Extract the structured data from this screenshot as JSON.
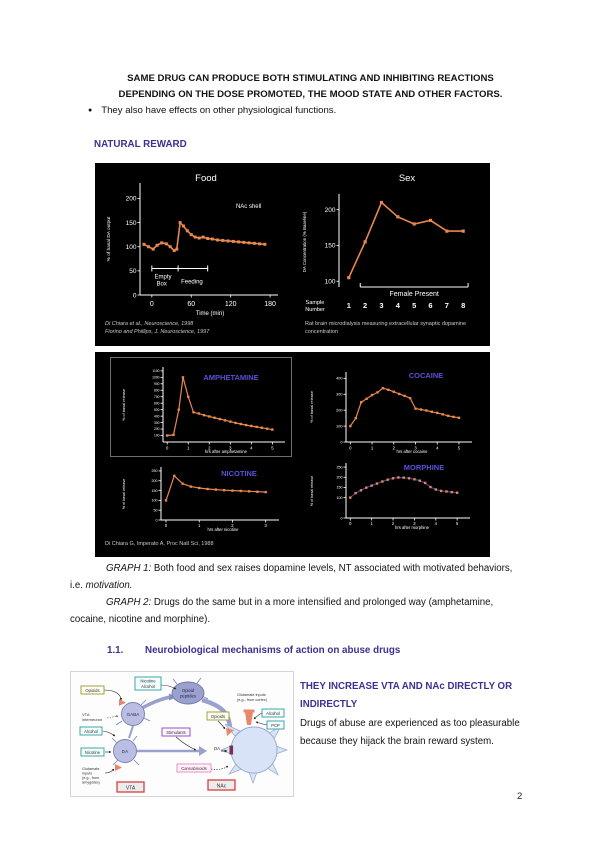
{
  "page": {
    "header_line1": "SAME DRUG CAN PRODUCE BOTH STIMULATING AND INHIBITING REACTIONS",
    "header_line2": "DEPENDING ON THE DOSE PROMOTED, THE MOOD STATE AND OTHER FACTORS.",
    "bullet_marker": "●",
    "bullet_text": "They also have effects on other physiological functions.",
    "natural_reward_heading": "NATURAL REWARD",
    "graph1_label": "GRAPH 1:",
    "graph1_text": " Both food and sex raises dopamine levels, NT associated with motivated behaviors, i.e. ",
    "graph1_emphasis": "motivation.",
    "graph2_label": "GRAPH 2:",
    "graph2_text": " Drugs do the same but in a more intensified and prolonged way (amphetamine, cocaine, nicotine and morphine).",
    "section_number": "1.1.",
    "section_title": "Neurobiological mechanisms of action on abuse drugs",
    "vta_heading": "THEY INCREASE VTA AND NAc DIRECTLY OR INDIRECTLY",
    "vta_body": "Drugs of abuse are experienced as too pleasurable because they hijack the brain reward system.",
    "page_number": "2"
  },
  "colors": {
    "doc_purple": "#3b3191",
    "chart_title_purple": "#5b4fd8",
    "series_orange": "#e8874e",
    "morphine_line": "#4a3f9e"
  },
  "figure1": {
    "citation_line1": "Di Chiara et al., Neuroscience, 1998",
    "citation_line2": "Fiorino and Phillips, J. Neuroscience, 1997",
    "caption": "Rat brain microdialysis measuring extracellular synaptic dopamine concentration"
  },
  "figure2": {
    "citation": "Di Chiara G, Imperato A, Proc Natl Sci, 1988"
  },
  "diagram": {
    "opioids1": "Opioids",
    "nicotine_top": "Nicotine",
    "alcohol_top": "Alcohol",
    "vta_interneuron1": "VTA",
    "vta_interneuron2": "interneuron",
    "alcohol_left": "Alcohol",
    "nicotine_left": "Nicotine",
    "glu_amygdala1": "Glutamate",
    "glu_amygdala2": "inputs",
    "glu_amygdala3": "(e.g., from",
    "glu_amygdala4": "amygdala)",
    "stimulants": "Stimulants",
    "opioids2": "Opioids",
    "cannabinoids": "Cannabinoids",
    "glu_cortex1": "Glutamate inputs",
    "glu_cortex2": "(e.g., from cortex)",
    "alcohol_right": "Alcohol",
    "pcp": "PCP",
    "gaba_neuron": "GABA",
    "da_neuron": "DA",
    "opioid_pep1": "Opioid",
    "opioid_pep2": "peptides",
    "da_axon_label": "DA",
    "vta_box": "VTA",
    "nac_box": "NAc"
  },
  "chart_data": [
    {
      "id": "food",
      "type": "line",
      "title": "Food",
      "label": "NAc shell",
      "xlabel": "Time (min)",
      "ylabel": "% of basal DA output",
      "xlim": [
        -18,
        192
      ],
      "ylim": [
        0,
        232
      ],
      "xticks": [
        0,
        60,
        120,
        180
      ],
      "yticks": [
        0,
        50,
        100,
        150,
        200
      ],
      "line_color": "#e8874e",
      "marker_color": "#e8874e",
      "title_color": "#ffffff",
      "x": [
        -12,
        -5,
        2,
        8,
        15,
        22,
        28,
        34,
        38,
        43,
        48,
        54,
        60,
        66,
        72,
        78,
        85,
        92,
        100,
        108,
        116,
        124,
        132,
        140,
        148,
        156,
        164,
        172
      ],
      "y": [
        105,
        100,
        95,
        103,
        108,
        106,
        100,
        92,
        95,
        150,
        143,
        133,
        125,
        120,
        118,
        120,
        117,
        116,
        114,
        113,
        112,
        111,
        110,
        109,
        108,
        107,
        106,
        105
      ],
      "annotations": {
        "box1": "Empty",
        "box2": "Box",
        "feeding": "Feeding"
      }
    },
    {
      "id": "sex",
      "type": "line",
      "title": "Sex",
      "xlabel1": "Sample",
      "xlabel2": "Number",
      "ylabel": "DA Concentration (% Baseline)",
      "xlim": [
        0.4,
        8.6
      ],
      "ylim": [
        78,
        240
      ],
      "xticks": [
        1,
        2,
        3,
        4,
        5,
        6,
        7,
        8
      ],
      "yticks": [
        100,
        150,
        200
      ],
      "line_color": "#e8874e",
      "marker_color": "#e8874e",
      "title_color": "#ffffff",
      "x": [
        1,
        2,
        3,
        4,
        5,
        6,
        7,
        8
      ],
      "y": [
        105,
        155,
        210,
        190,
        180,
        185,
        170,
        170
      ],
      "annotations": {
        "female": "Female Present"
      }
    },
    {
      "id": "amphetamine",
      "type": "line",
      "title": "AMPHETAMINE",
      "xlabel": "hrs after amphetamine",
      "ylabel": "% of basal release",
      "xlim": [
        -0.2,
        5.6
      ],
      "ylim": [
        0,
        1160
      ],
      "xticks": [
        0,
        1,
        2,
        3,
        4,
        5
      ],
      "yticks": [
        100,
        200,
        300,
        400,
        500,
        600,
        700,
        800,
        900,
        1000,
        1100
      ],
      "line_color": "#e8874e",
      "marker_color": "#e8874e",
      "title_color": "#5b4fd8",
      "title_bold": true,
      "x": [
        0,
        0.3,
        0.55,
        0.75,
        1,
        1.25,
        1.5,
        1.75,
        2,
        2.25,
        2.5,
        2.75,
        3,
        3.25,
        3.5,
        3.75,
        4,
        4.25,
        4.5,
        4.75,
        5
      ],
      "y": [
        100,
        110,
        500,
        1000,
        700,
        460,
        440,
        415,
        395,
        375,
        355,
        335,
        315,
        295,
        278,
        262,
        248,
        234,
        220,
        206,
        192
      ]
    },
    {
      "id": "cocaine",
      "type": "line",
      "title": "COCAINE",
      "xlabel": "hrs after cocaine",
      "ylabel": "% of basal release",
      "xlim": [
        -0.2,
        5.6
      ],
      "ylim": [
        0,
        440
      ],
      "xticks": [
        0,
        1,
        2,
        3,
        4,
        5
      ],
      "yticks": [
        0,
        100,
        200,
        300,
        400
      ],
      "line_color": "#e8874e",
      "marker_color": "#e8874e",
      "title_color": "#5b4fd8",
      "title_bold": true,
      "x": [
        0,
        0.25,
        0.5,
        0.75,
        1,
        1.25,
        1.5,
        1.75,
        2,
        2.25,
        2.5,
        2.75,
        3,
        3.25,
        3.5,
        3.75,
        4,
        4.25,
        4.5,
        4.75,
        5
      ],
      "y": [
        100,
        150,
        250,
        272,
        295,
        312,
        338,
        328,
        316,
        302,
        290,
        276,
        210,
        204,
        198,
        190,
        183,
        174,
        165,
        158,
        152
      ]
    },
    {
      "id": "nicotine",
      "type": "line",
      "title": "NICOTINE",
      "xlabel": "hrs after nicotine",
      "ylabel": "% of basal release",
      "xlim": [
        -0.15,
        3.4
      ],
      "ylim": [
        0,
        270
      ],
      "xticks": [
        0,
        1,
        2,
        3
      ],
      "yticks": [
        0,
        50,
        100,
        150,
        200,
        250
      ],
      "line_color": "#e8874e",
      "marker_color": "#e8874e",
      "title_color": "#5b4fd8",
      "title_bold": true,
      "x": [
        0,
        0.25,
        0.5,
        0.75,
        1,
        1.25,
        1.5,
        1.75,
        2,
        2.25,
        2.5,
        2.75,
        3
      ],
      "y": [
        100,
        225,
        185,
        170,
        163,
        158,
        155,
        152,
        150,
        148,
        146,
        144,
        142
      ]
    },
    {
      "id": "morphine",
      "type": "line",
      "title": "MORPHINE",
      "xlabel": "hrs after morphine",
      "ylabel": "% of basal release",
      "xlim": [
        -0.2,
        5.6
      ],
      "ylim": [
        0,
        270
      ],
      "xticks": [
        0,
        1,
        2,
        3,
        4,
        5
      ],
      "yticks": [
        0,
        100,
        150,
        200,
        250
      ],
      "line_color": "#4a3f9e",
      "marker_color": "#e8874e",
      "title_color": "#5b4fd8",
      "title_bold": true,
      "x": [
        0,
        0.25,
        0.5,
        0.75,
        1,
        1.25,
        1.5,
        1.75,
        2,
        2.25,
        2.5,
        2.75,
        3,
        3.25,
        3.5,
        3.75,
        4,
        4.25,
        4.5,
        4.75,
        5
      ],
      "y": [
        100,
        122,
        136,
        149,
        159,
        169,
        179,
        188,
        195,
        199,
        198,
        195,
        190,
        183,
        172,
        152,
        140,
        133,
        130,
        127,
        124
      ]
    }
  ]
}
